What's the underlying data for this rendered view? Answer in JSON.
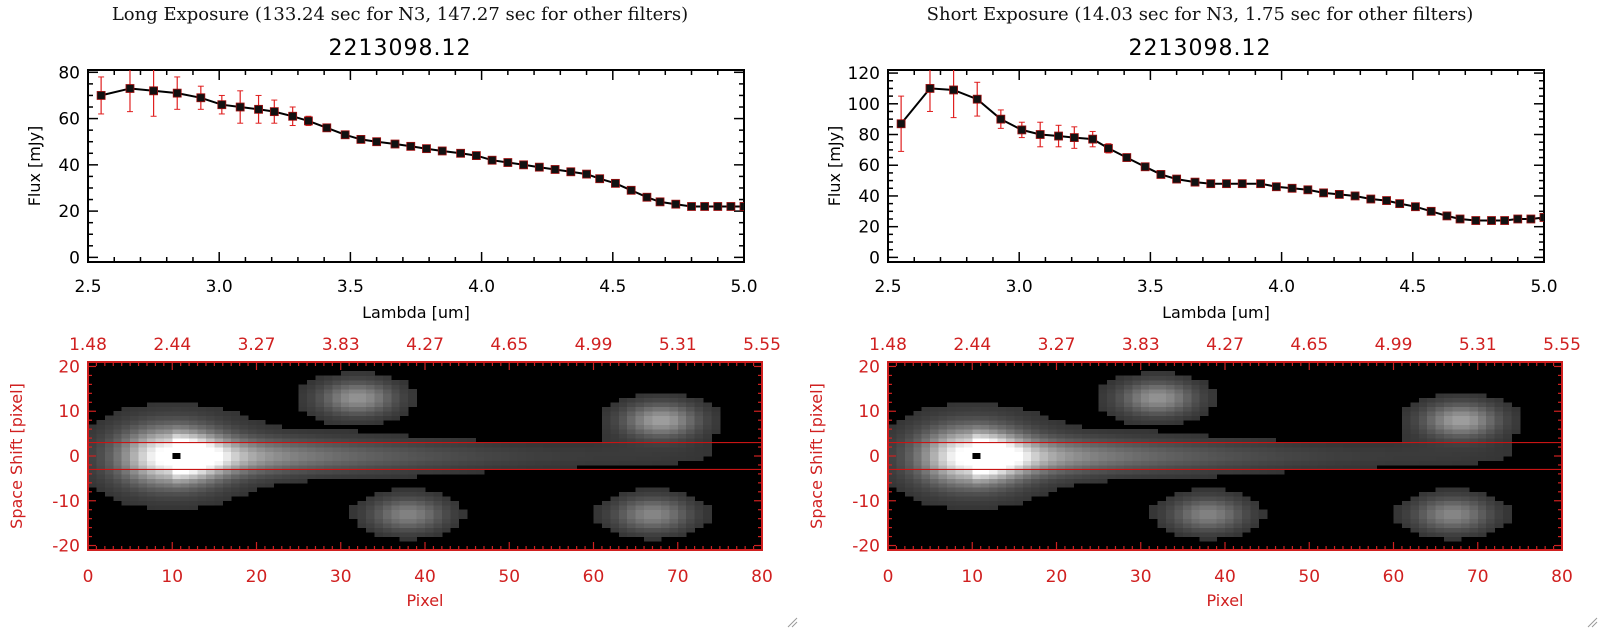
{
  "colors": {
    "spectrum_line": "#000000",
    "error_bars": "#e02020",
    "axes_image": "#d02020",
    "aperture_lines": "#c81414"
  },
  "panels": [
    {
      "title": "Long Exposure (133.24 sec for N3, 147.27 sec for other filters)",
      "object_id": "2213098.12"
    },
    {
      "title": "Short Exposure (14.03 sec for N3, 1.75 sec for other filters)",
      "object_id": "2213098.12"
    }
  ],
  "chart_data": [
    {
      "type": "line",
      "xlabel": "Lambda [um]",
      "ylabel": "Flux [mJy]",
      "xlim": [
        2.5,
        5.0
      ],
      "ylim": [
        -2,
        81
      ],
      "xticks": [
        "2.5",
        "3.0",
        "3.5",
        "4.0",
        "4.5",
        "5.0"
      ],
      "yticks": [
        "0",
        "20",
        "40",
        "60",
        "80"
      ],
      "x": [
        2.55,
        2.66,
        2.75,
        2.84,
        2.93,
        3.01,
        3.08,
        3.15,
        3.21,
        3.28,
        3.34,
        3.41,
        3.48,
        3.54,
        3.6,
        3.67,
        3.73,
        3.79,
        3.85,
        3.92,
        3.98,
        4.04,
        4.1,
        4.16,
        4.22,
        4.28,
        4.34,
        4.4,
        4.45,
        4.51,
        4.57,
        4.63,
        4.68,
        4.74,
        4.8,
        4.85,
        4.9,
        4.95,
        5.0
      ],
      "y": [
        70,
        73,
        72,
        71,
        69,
        66,
        65,
        64,
        63,
        61,
        59,
        56,
        53,
        51,
        50,
        49,
        48,
        47,
        46,
        45,
        44,
        42,
        41,
        40,
        39,
        38,
        37,
        36,
        34,
        32,
        29,
        26,
        24,
        23,
        22,
        22,
        22,
        22,
        22
      ],
      "yerr": [
        8,
        10,
        11,
        7,
        5,
        4,
        7,
        6,
        5,
        4,
        2,
        1,
        1,
        1,
        1,
        1,
        1,
        1,
        1,
        1,
        1,
        1,
        1,
        1,
        1,
        1,
        1,
        1,
        1,
        1,
        1,
        1,
        1,
        1,
        1,
        1,
        1,
        1,
        1
      ]
    },
    {
      "type": "heatmap",
      "xlabel": "Pixel",
      "ylabel": "Space Shift [pixel]",
      "xlim": [
        0,
        80
      ],
      "ylim": [
        -21,
        21
      ],
      "xticks": [
        "0",
        "10",
        "20",
        "30",
        "40",
        "50",
        "60",
        "70",
        "80"
      ],
      "yticks": [
        "-20",
        "-10",
        "0",
        "10",
        "20"
      ],
      "top_ticks": [
        "1.48",
        "2.44",
        "3.27",
        "3.83",
        "4.27",
        "4.65",
        "4.99",
        "5.31",
        "5.55"
      ],
      "aperture": [
        -3,
        3
      ],
      "peak": [
        10,
        0
      ]
    },
    {
      "type": "line",
      "xlabel": "Lambda [um]",
      "ylabel": "Flux [mJy]",
      "xlim": [
        2.5,
        5.0
      ],
      "ylim": [
        -3,
        122
      ],
      "xticks": [
        "2.5",
        "3.0",
        "3.5",
        "4.0",
        "4.5",
        "5.0"
      ],
      "yticks": [
        "0",
        "20",
        "40",
        "60",
        "80",
        "100",
        "120"
      ],
      "x": [
        2.55,
        2.66,
        2.75,
        2.84,
        2.93,
        3.01,
        3.08,
        3.15,
        3.21,
        3.28,
        3.34,
        3.41,
        3.48,
        3.54,
        3.6,
        3.67,
        3.73,
        3.79,
        3.85,
        3.92,
        3.98,
        4.04,
        4.1,
        4.16,
        4.22,
        4.28,
        4.34,
        4.4,
        4.45,
        4.51,
        4.57,
        4.63,
        4.68,
        4.74,
        4.8,
        4.85,
        4.9,
        4.95,
        5.0
      ],
      "y": [
        87,
        110,
        109,
        103,
        90,
        83,
        80,
        79,
        78,
        77,
        71,
        65,
        59,
        54,
        51,
        49,
        48,
        48,
        48,
        48,
        46,
        45,
        44,
        42,
        41,
        40,
        38,
        37,
        35,
        33,
        30,
        27,
        25,
        24,
        24,
        24,
        25,
        25,
        26
      ],
      "yerr": [
        18,
        15,
        18,
        11,
        6,
        5,
        8,
        7,
        7,
        5,
        3,
        2,
        2,
        1,
        1,
        1,
        1,
        1,
        1,
        1,
        1,
        1,
        1,
        1,
        1,
        1,
        1,
        1,
        1,
        1,
        1,
        1,
        1,
        1,
        1,
        1,
        1,
        1,
        1
      ]
    },
    {
      "type": "heatmap",
      "xlabel": "Pixel",
      "ylabel": "Space Shift [pixel]",
      "xlim": [
        0,
        80
      ],
      "ylim": [
        -21,
        21
      ],
      "xticks": [
        "0",
        "10",
        "20",
        "30",
        "40",
        "50",
        "60",
        "70",
        "80"
      ],
      "yticks": [
        "-20",
        "-10",
        "0",
        "10",
        "20"
      ],
      "top_ticks": [
        "1.48",
        "2.44",
        "3.27",
        "3.83",
        "4.27",
        "4.65",
        "4.99",
        "5.31",
        "5.55"
      ],
      "aperture": [
        -3,
        3
      ],
      "peak": [
        10,
        0
      ]
    }
  ]
}
